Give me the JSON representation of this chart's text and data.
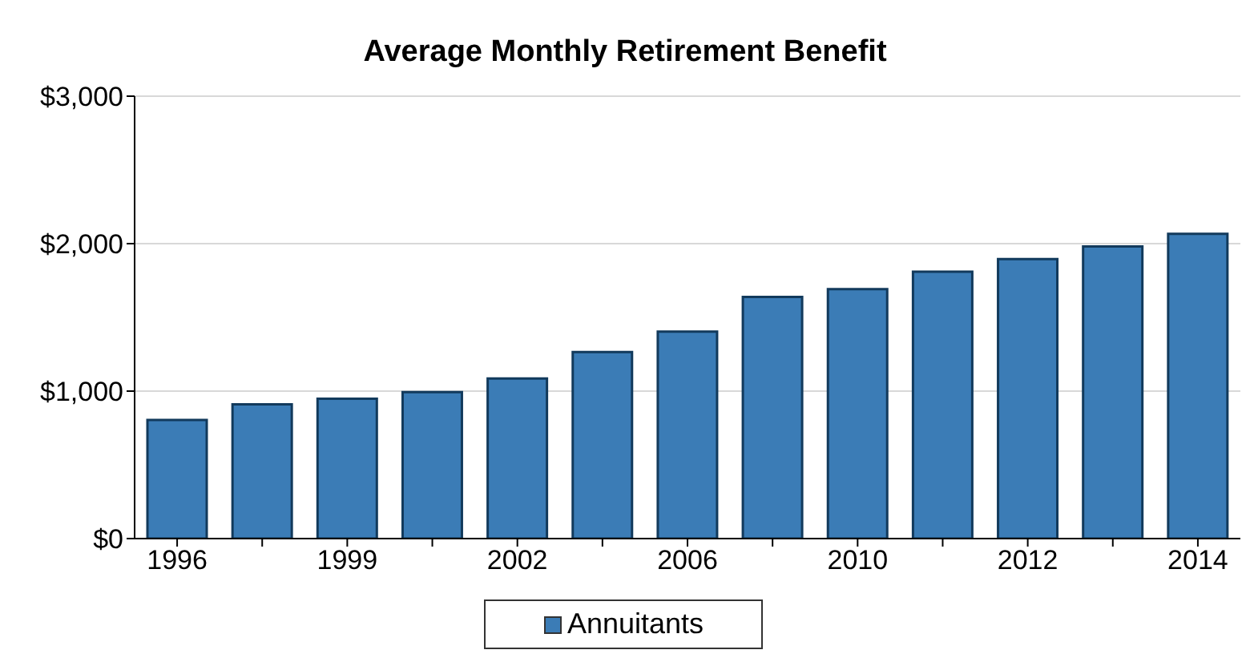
{
  "chart_data": {
    "type": "bar",
    "title": "Average Monthly Retirement Benefit",
    "categories": [
      "1996",
      null,
      "1999",
      null,
      "2002",
      null,
      "2006",
      null,
      "2010",
      null,
      "2012",
      null,
      "2014"
    ],
    "series": [
      {
        "name": "Annuitants",
        "color": "#3b7cb6",
        "values": [
          805,
          910,
          948,
          993,
          1086,
          1265,
          1404,
          1639,
          1691,
          1810,
          1895,
          1981,
          2067
        ]
      }
    ],
    "ylim": [
      0,
      3000
    ],
    "yticks": [
      {
        "value": 0,
        "label": "$0"
      },
      {
        "value": 1000,
        "label": "$1,000"
      },
      {
        "value": 2000,
        "label": "$2,000"
      },
      {
        "value": 3000,
        "label": "$3,000"
      }
    ],
    "grid": "y",
    "legend": "bottom"
  }
}
